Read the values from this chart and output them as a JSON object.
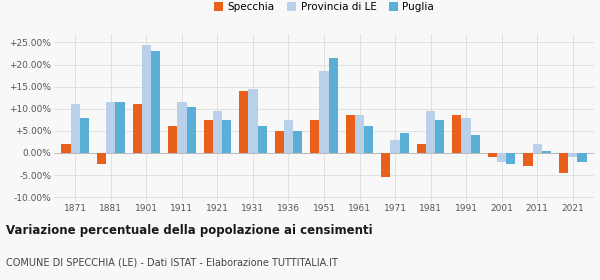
{
  "years": [
    1871,
    1881,
    1901,
    1911,
    1921,
    1931,
    1936,
    1951,
    1961,
    1971,
    1981,
    1991,
    2001,
    2011,
    2021
  ],
  "specchia": [
    2.0,
    -2.5,
    11.0,
    6.0,
    7.5,
    14.0,
    5.0,
    7.5,
    8.5,
    -5.5,
    2.0,
    8.5,
    -1.0,
    -3.0,
    -4.5
  ],
  "provincia_le": [
    11.0,
    11.5,
    24.5,
    11.5,
    9.5,
    14.5,
    7.5,
    18.5,
    8.5,
    3.0,
    9.5,
    8.0,
    -2.0,
    2.0,
    -1.0
  ],
  "puglia": [
    8.0,
    11.5,
    23.0,
    10.5,
    7.5,
    6.0,
    5.0,
    21.5,
    6.0,
    4.5,
    7.5,
    4.0,
    -2.5,
    0.5,
    -2.0
  ],
  "color_specchia": "#e8601c",
  "color_provincia": "#b8d0ea",
  "color_puglia": "#5bafd6",
  "title": "Variazione percentuale della popolazione ai censimenti",
  "subtitle": "COMUNE DI SPECCHIA (LE) - Dati ISTAT - Elaborazione TUTTITALIA.IT",
  "ylim": [
    -11,
    27
  ],
  "yticks": [
    -10,
    -5,
    0,
    5,
    10,
    15,
    20,
    25
  ],
  "ytick_labels": [
    "-10.00%",
    "-5.00%",
    "0.00%",
    "+5.00%",
    "+10.00%",
    "+15.00%",
    "+20.00%",
    "+25.00%"
  ],
  "bar_width": 0.26,
  "legend_labels": [
    "Specchia",
    "Provincia di LE",
    "Puglia"
  ],
  "bg_color": "#f8f8f8"
}
